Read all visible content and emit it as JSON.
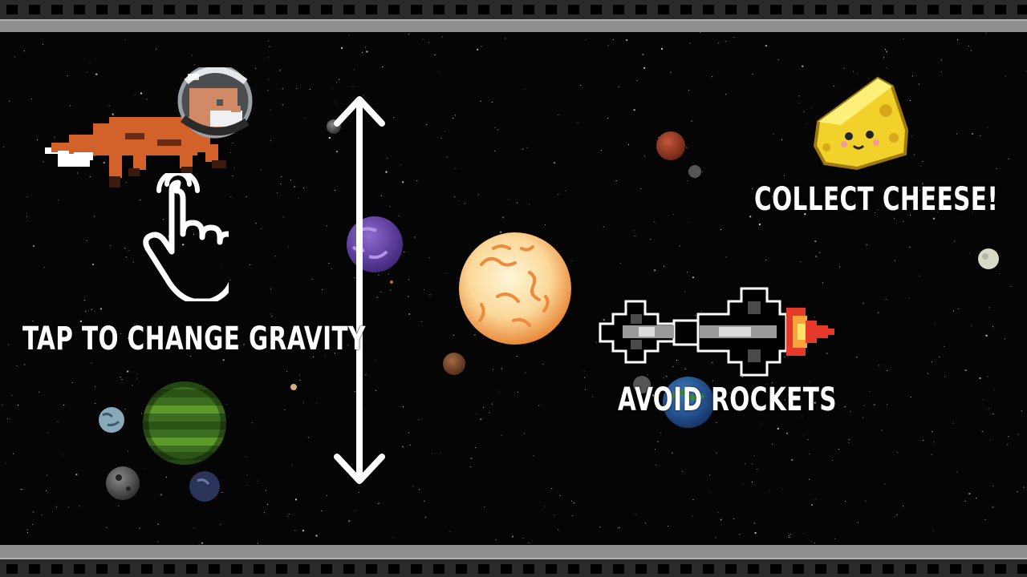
{
  "instructions": {
    "tap_to_change_gravity": "TAP TO CHANGE GRAVITY",
    "collect_cheese": "COLLECT CHEESE!",
    "avoid_rockets": "AVOID ROCKETS"
  },
  "icons": {
    "player": "astronaut-fox-icon",
    "tap": "tap-hand-icon",
    "gravity": "double-arrow-vertical-icon",
    "pickup": "cheese-icon",
    "hazard": "rocket-icon"
  },
  "colors": {
    "background": "#050505",
    "rail_dark": "#2a2a2a",
    "rail_light": "#8f8f8f",
    "text": "#ffffff",
    "fox": "#d3622a",
    "cheese": "#f2d22a",
    "sun": "#f7a94a",
    "rocket_flame": "#e53a2a"
  }
}
